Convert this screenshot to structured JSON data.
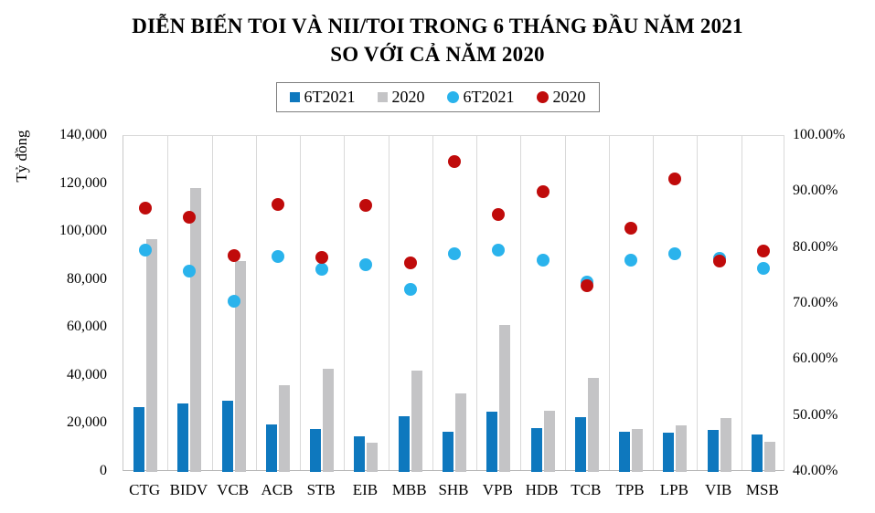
{
  "title": {
    "line1": "DIỄN BIẾN TOI VÀ NII/TOI TRONG 6 THÁNG ĐẦU NĂM 2021",
    "line2": "SO VỚI CẢ NĂM 2020"
  },
  "legend": [
    {
      "label": "6T2021",
      "marker": "square",
      "color": "#0e78be"
    },
    {
      "label": "2020",
      "marker": "square",
      "color": "#c4c4c6"
    },
    {
      "label": "6T2021",
      "marker": "circle",
      "color": "#2ab3ec"
    },
    {
      "label": "2020",
      "marker": "circle",
      "color": "#c00b0b"
    }
  ],
  "left_axis": {
    "title": "Tỷ đồng",
    "tick_labels": [
      "140,000",
      "120,000",
      "100,000",
      "80,000",
      "60,000",
      "40,000",
      "20,000",
      "0"
    ]
  },
  "right_axis": {
    "tick_labels": [
      "100.00%",
      "90.00%",
      "80.00%",
      "70.00%",
      "60.00%",
      "50.00%",
      "40.00%"
    ]
  },
  "chart_data": {
    "type": "bar",
    "subtype": "combo-bar-scatter-dual-axis",
    "title": "DIỄN BIẾN TOI VÀ NII/TOI TRONG 6 THÁNG ĐẦU NĂM 2021 SO VỚI CẢ NĂM 2020",
    "xlabel": "",
    "ylabel_left": "Tỷ đồng",
    "ylim_left": [
      0,
      140000
    ],
    "ylim_right": [
      40,
      100
    ],
    "grid": "vertical-only",
    "legend_position": "top",
    "categories": [
      "CTG",
      "BIDV",
      "VCB",
      "ACB",
      "STB",
      "EIB",
      "MBB",
      "SHB",
      "VPB",
      "HDB",
      "TCB",
      "TPB",
      "LPB",
      "VIB",
      "MSB"
    ],
    "series": [
      {
        "name": "6T2021",
        "type": "bar",
        "axis": "left",
        "color": "#0e78be",
        "values": [
          27100,
          28700,
          29600,
          19900,
          18000,
          15000,
          23300,
          16900,
          25100,
          18300,
          23000,
          16700,
          16500,
          17400,
          15600
        ]
      },
      {
        "name": "2020",
        "type": "bar",
        "axis": "left",
        "color": "#c4c4c6",
        "values": [
          97000,
          118200,
          88000,
          36200,
          42900,
          12300,
          42200,
          32600,
          61300,
          25600,
          39300,
          17800,
          19300,
          22300,
          12700
        ]
      },
      {
        "name": "6T2021",
        "type": "scatter",
        "axis": "right",
        "color": "#2ab3ec",
        "values": [
          79.6,
          75.8,
          70.5,
          78.5,
          76.2,
          77.0,
          72.6,
          78.9,
          79.7,
          77.9,
          73.9,
          77.9,
          78.9,
          78.2,
          76.3
        ]
      },
      {
        "name": "2020",
        "type": "scatter",
        "axis": "right",
        "color": "#c00b0b",
        "values": [
          87.2,
          85.5,
          78.6,
          87.8,
          78.3,
          87.6,
          77.3,
          95.5,
          85.9,
          90.1,
          73.2,
          83.5,
          92.3,
          77.7,
          79.4
        ]
      }
    ]
  }
}
